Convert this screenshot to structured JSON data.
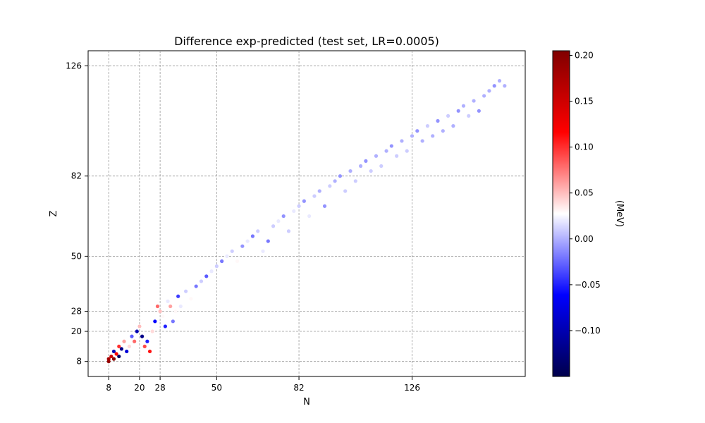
{
  "chart_data": {
    "type": "scatter",
    "title": "Difference exp-predicted (test set, LR=0.0005)",
    "xlabel": "N",
    "ylabel": "Z",
    "xlim": [
      0,
      170
    ],
    "ylim": [
      2,
      132
    ],
    "xticks": [
      8,
      20,
      28,
      50,
      82,
      126
    ],
    "yticks": [
      8,
      20,
      28,
      50,
      82,
      126
    ],
    "grid": true,
    "colorbar": {
      "label": "(MeV)",
      "cmap": "seismic",
      "range": [
        -0.15,
        0.205
      ],
      "ticks": [
        0.2,
        0.15,
        0.1,
        0.05,
        0.0,
        -0.05,
        -0.1
      ],
      "tick_labels": [
        "0.20",
        "0.15",
        "0.10",
        "0.05",
        "0.00",
        "−0.05",
        "−0.10"
      ]
    },
    "points": [
      [
        8,
        8,
        0.19
      ],
      [
        9,
        10,
        0.15
      ],
      [
        8,
        9,
        0.18
      ],
      [
        10,
        12,
        -0.1
      ],
      [
        11,
        11,
        0.12
      ],
      [
        12,
        10,
        -0.14
      ],
      [
        10,
        9,
        0.2
      ],
      [
        13,
        13,
        -0.12
      ],
      [
        12,
        14,
        0.1
      ],
      [
        14,
        16,
        0.06
      ],
      [
        15,
        12,
        -0.08
      ],
      [
        16,
        14,
        0.04
      ],
      [
        17,
        18,
        -0.03
      ],
      [
        18,
        16,
        0.08
      ],
      [
        19,
        20,
        -0.1
      ],
      [
        20,
        22,
        0.05
      ],
      [
        21,
        18,
        -0.12
      ],
      [
        22,
        14,
        0.09
      ],
      [
        23,
        16,
        -0.05
      ],
      [
        24,
        12,
        0.11
      ],
      [
        25,
        20,
        0.04
      ],
      [
        26,
        24,
        -0.06
      ],
      [
        27,
        30,
        0.08
      ],
      [
        28,
        28,
        0.05
      ],
      [
        29,
        26,
        0.03
      ],
      [
        30,
        22,
        -0.05
      ],
      [
        31,
        32,
        0.02
      ],
      [
        32,
        30,
        0.06
      ],
      [
        33,
        24,
        -0.02
      ],
      [
        34,
        28,
        0.03
      ],
      [
        35,
        34,
        -0.04
      ],
      [
        36,
        30,
        0.02
      ],
      [
        38,
        36,
        0.01
      ],
      [
        40,
        33,
        0.03
      ],
      [
        42,
        38,
        -0.02
      ],
      [
        44,
        40,
        0.01
      ],
      [
        46,
        42,
        -0.03
      ],
      [
        48,
        44,
        0.02
      ],
      [
        50,
        46,
        0.01
      ],
      [
        52,
        48,
        -0.02
      ],
      [
        54,
        50,
        0.02
      ],
      [
        56,
        52,
        0.01
      ],
      [
        58,
        48,
        0.03
      ],
      [
        60,
        54,
        -0.01
      ],
      [
        62,
        56,
        0.02
      ],
      [
        64,
        58,
        -0.02
      ],
      [
        66,
        60,
        0.01
      ],
      [
        68,
        52,
        0.02
      ],
      [
        70,
        56,
        -0.02
      ],
      [
        72,
        62,
        0.01
      ],
      [
        74,
        64,
        0.02
      ],
      [
        76,
        66,
        -0.01
      ],
      [
        78,
        60,
        0.01
      ],
      [
        80,
        68,
        0.02
      ],
      [
        82,
        70,
        0.01
      ],
      [
        84,
        72,
        -0.01
      ],
      [
        86,
        66,
        0.02
      ],
      [
        88,
        74,
        0.01
      ],
      [
        90,
        76,
        0.0
      ],
      [
        92,
        70,
        -0.01
      ],
      [
        94,
        78,
        0.01
      ],
      [
        96,
        80,
        0.0
      ],
      [
        98,
        82,
        -0.01
      ],
      [
        100,
        76,
        0.01
      ],
      [
        102,
        84,
        0.0
      ],
      [
        104,
        80,
        0.01
      ],
      [
        106,
        86,
        0.0
      ],
      [
        108,
        88,
        -0.01
      ],
      [
        110,
        84,
        0.01
      ],
      [
        112,
        90,
        0.0
      ],
      [
        114,
        86,
        0.01
      ],
      [
        116,
        92,
        0.0
      ],
      [
        118,
        94,
        -0.01
      ],
      [
        120,
        90,
        0.01
      ],
      [
        122,
        96,
        0.0
      ],
      [
        124,
        92,
        0.01
      ],
      [
        126,
        98,
        0.0
      ],
      [
        128,
        100,
        -0.01
      ],
      [
        130,
        96,
        0.0
      ],
      [
        132,
        102,
        0.01
      ],
      [
        134,
        98,
        0.0
      ],
      [
        136,
        104,
        -0.01
      ],
      [
        138,
        100,
        0.0
      ],
      [
        140,
        106,
        0.01
      ],
      [
        142,
        102,
        0.0
      ],
      [
        144,
        108,
        -0.01
      ],
      [
        146,
        110,
        0.0
      ],
      [
        148,
        106,
        0.01
      ],
      [
        150,
        112,
        0.0
      ],
      [
        152,
        108,
        -0.01
      ],
      [
        154,
        114,
        0.0
      ],
      [
        156,
        116,
        0.0
      ],
      [
        158,
        118,
        -0.01
      ],
      [
        160,
        120,
        0.0
      ],
      [
        162,
        118,
        0.0
      ]
    ]
  }
}
